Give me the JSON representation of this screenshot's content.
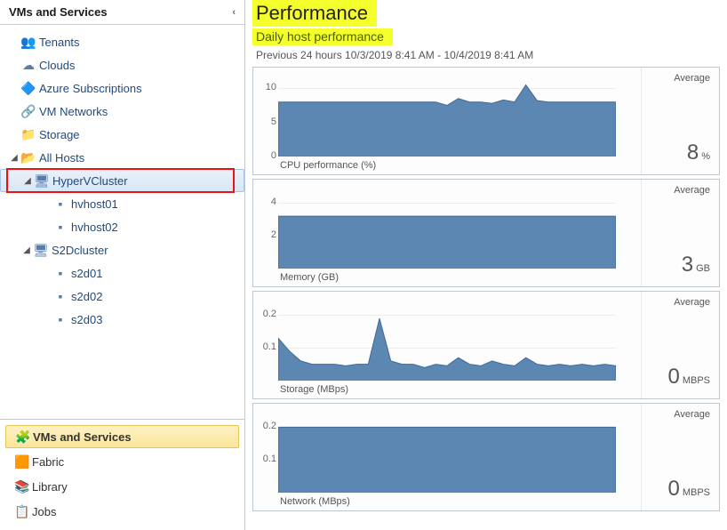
{
  "sidebar": {
    "header": "VMs and Services",
    "tree": [
      {
        "name": "tenants",
        "icon": "👥",
        "label": "Tenants",
        "indent": 0,
        "twisty": ""
      },
      {
        "name": "clouds",
        "icon": "☁",
        "label": "Clouds",
        "indent": 0,
        "twisty": ""
      },
      {
        "name": "azure-subscriptions",
        "icon": "🔷",
        "label": "Azure Subscriptions",
        "indent": 0,
        "twisty": ""
      },
      {
        "name": "vm-networks",
        "icon": "🔗",
        "label": "VM Networks",
        "indent": 0,
        "twisty": ""
      },
      {
        "name": "storage",
        "icon": "📁",
        "label": "Storage",
        "indent": 0,
        "twisty": ""
      },
      {
        "name": "all-hosts",
        "icon": "📂",
        "label": "All Hosts",
        "indent": 0,
        "twisty": "◢"
      },
      {
        "name": "hypervcluster",
        "icon": "🖥",
        "label": "HyperVCluster",
        "indent": 1,
        "twisty": "◢",
        "selected": true,
        "outlined": true
      },
      {
        "name": "hvhost01",
        "icon": "▪",
        "label": "hvhost01",
        "indent": 2,
        "twisty": ""
      },
      {
        "name": "hvhost02",
        "icon": "▪",
        "label": "hvhost02",
        "indent": 2,
        "twisty": ""
      },
      {
        "name": "s2dcluster",
        "icon": "🖥",
        "label": "S2Dcluster",
        "indent": 1,
        "twisty": "◢"
      },
      {
        "name": "s2d01",
        "icon": "▪",
        "label": "s2d01",
        "indent": 2,
        "twisty": ""
      },
      {
        "name": "s2d02",
        "icon": "▪",
        "label": "s2d02",
        "indent": 2,
        "twisty": ""
      },
      {
        "name": "s2d03",
        "icon": "▪",
        "label": "s2d03",
        "indent": 2,
        "twisty": ""
      }
    ],
    "nav": [
      {
        "name": "nav-vms",
        "icon": "🧩",
        "label": "VMs and Services",
        "active": true
      },
      {
        "name": "nav-fabric",
        "icon": "🟧",
        "label": "Fabric"
      },
      {
        "name": "nav-library",
        "icon": "📚",
        "label": "Library"
      },
      {
        "name": "nav-jobs",
        "icon": "📋",
        "label": "Jobs"
      }
    ]
  },
  "header": {
    "title": "Performance",
    "subtitle": "Daily host performance",
    "range": "Previous 24 hours  10/3/2019 8:41 AM - 10/4/2019 8:41 AM"
  },
  "charts": [
    {
      "name": "cpu",
      "caption": "CPU performance (%)",
      "side_label": "Average",
      "value": "8",
      "unit": "%",
      "ylim": [
        0,
        12
      ],
      "yticks": [
        0,
        5,
        10
      ],
      "series_color": "#5c87b2",
      "values": [
        8,
        8,
        8,
        8,
        8,
        8,
        8,
        8,
        8,
        8,
        8,
        8,
        8,
        8,
        8,
        7.5,
        8.5,
        8,
        8,
        7.8,
        8.3,
        8,
        10.5,
        8.2,
        8,
        8,
        8,
        8,
        8,
        8,
        8
      ]
    },
    {
      "name": "memory",
      "caption": "Memory (GB)",
      "side_label": "Average",
      "value": "3",
      "unit": "GB",
      "ylim": [
        0,
        5
      ],
      "yticks": [
        2,
        4
      ],
      "series_color": "#5c87b2",
      "values": [
        3.2,
        3.2,
        3.2,
        3.2,
        3.2,
        3.2,
        3.2,
        3.2,
        3.2,
        3.2,
        3.2,
        3.2,
        3.2,
        3.2,
        3.2,
        3.2,
        3.2,
        3.2,
        3.2,
        3.2,
        3.2,
        3.2,
        3.2,
        3.2,
        3.2,
        3.2,
        3.2,
        3.2,
        3.2,
        3.2,
        3.2
      ]
    },
    {
      "name": "storage",
      "caption": "Storage (MBps)",
      "side_label": "Average",
      "value": "0",
      "unit": "MBPS",
      "ylim": [
        0,
        0.25
      ],
      "yticks": [
        0.1,
        0.2
      ],
      "series_color": "#5c87b2",
      "values": [
        0.13,
        0.09,
        0.06,
        0.05,
        0.05,
        0.05,
        0.045,
        0.05,
        0.05,
        0.19,
        0.06,
        0.05,
        0.05,
        0.04,
        0.05,
        0.045,
        0.07,
        0.05,
        0.045,
        0.06,
        0.05,
        0.045,
        0.07,
        0.05,
        0.045,
        0.05,
        0.045,
        0.05,
        0.045,
        0.05,
        0.045
      ]
    },
    {
      "name": "network",
      "caption": "Network (MBps)",
      "side_label": "Average",
      "value": "0",
      "unit": "MBPS",
      "ylim": [
        0,
        0.25
      ],
      "yticks": [
        0.1,
        0.2
      ],
      "series_color": "#5c87b2",
      "values": [
        0.2,
        0.2,
        0.2,
        0.2,
        0.2,
        0.2,
        0.2,
        0.2,
        0.2,
        0.2,
        0.2,
        0.2,
        0.2,
        0.2,
        0.2,
        0.2,
        0.2,
        0.2,
        0.2,
        0.2,
        0.2,
        0.2,
        0.2,
        0.2,
        0.2,
        0.2,
        0.2,
        0.2,
        0.2,
        0.2,
        0.2
      ]
    }
  ]
}
